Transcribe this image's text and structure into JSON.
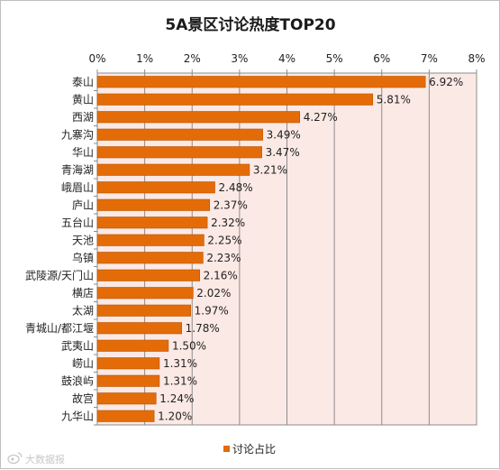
{
  "chart_data": {
    "type": "bar",
    "orientation": "horizontal",
    "title": "5A景区讨论热度TOP20",
    "categories": [
      "泰山",
      "黄山",
      "西湖",
      "九寨沟",
      "华山",
      "青海湖",
      "峨眉山",
      "庐山",
      "五台山",
      "天池",
      "乌镇",
      "武陵源/天门山",
      "横店",
      "太湖",
      "青城山/都江堰",
      "武夷山",
      "崂山",
      "鼓浪屿",
      "故宫",
      "九华山"
    ],
    "series": [
      {
        "name": "讨论占比",
        "values": [
          6.92,
          5.81,
          4.27,
          3.49,
          3.47,
          3.21,
          2.48,
          2.37,
          2.32,
          2.25,
          2.23,
          2.16,
          2.02,
          1.97,
          1.78,
          1.5,
          1.31,
          1.31,
          1.24,
          1.2
        ],
        "data_labels": [
          "6.92%",
          "5.81%",
          "4.27%",
          "3.49%",
          "3.47%",
          "3.21%",
          "2.48%",
          "2.37%",
          "2.32%",
          "2.25%",
          "2.23%",
          "2.16%",
          "2.02%",
          "1.97%",
          "1.78%",
          "1.50%",
          "1.31%",
          "1.31%",
          "1.24%",
          "1.20%"
        ]
      }
    ],
    "xlim": [
      0,
      8
    ],
    "x_ticks": [
      0,
      1,
      2,
      3,
      4,
      5,
      6,
      7,
      8
    ],
    "x_tick_labels": [
      "0%",
      "1%",
      "2%",
      "3%",
      "4%",
      "5%",
      "6%",
      "7%",
      "8%"
    ],
    "x_axis_position": "top",
    "grid": true,
    "legend": "bottom-center",
    "colors": {
      "bar": "#e36c09",
      "bar_edge": "#b85300",
      "plot_bg": "#fbe9e5",
      "grid": "#8c8c8c"
    }
  },
  "watermark": {
    "text": "大数据报",
    "icon": "weibo-icon"
  }
}
